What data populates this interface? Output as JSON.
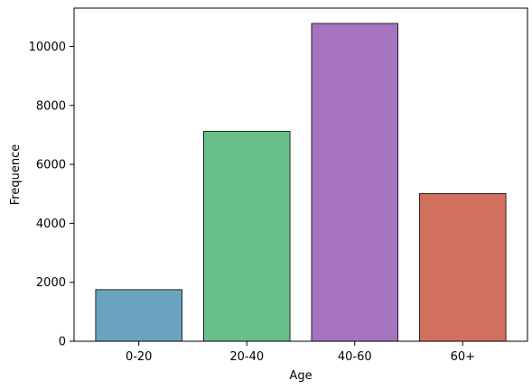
{
  "chart_data": {
    "type": "bar",
    "title": "",
    "xlabel": "Age",
    "ylabel": "Frequence",
    "categories": [
      "0-20",
      "20-40",
      "40-60",
      "60+"
    ],
    "values": [
      1750,
      7120,
      10780,
      5010
    ],
    "colors": [
      "#6aa3bf",
      "#69bf8a",
      "#a673bf",
      "#d1705e"
    ],
    "ylim": [
      0,
      11300
    ],
    "yticks": [
      0,
      2000,
      4000,
      6000,
      8000,
      10000
    ],
    "grid": false,
    "legend": "none"
  }
}
